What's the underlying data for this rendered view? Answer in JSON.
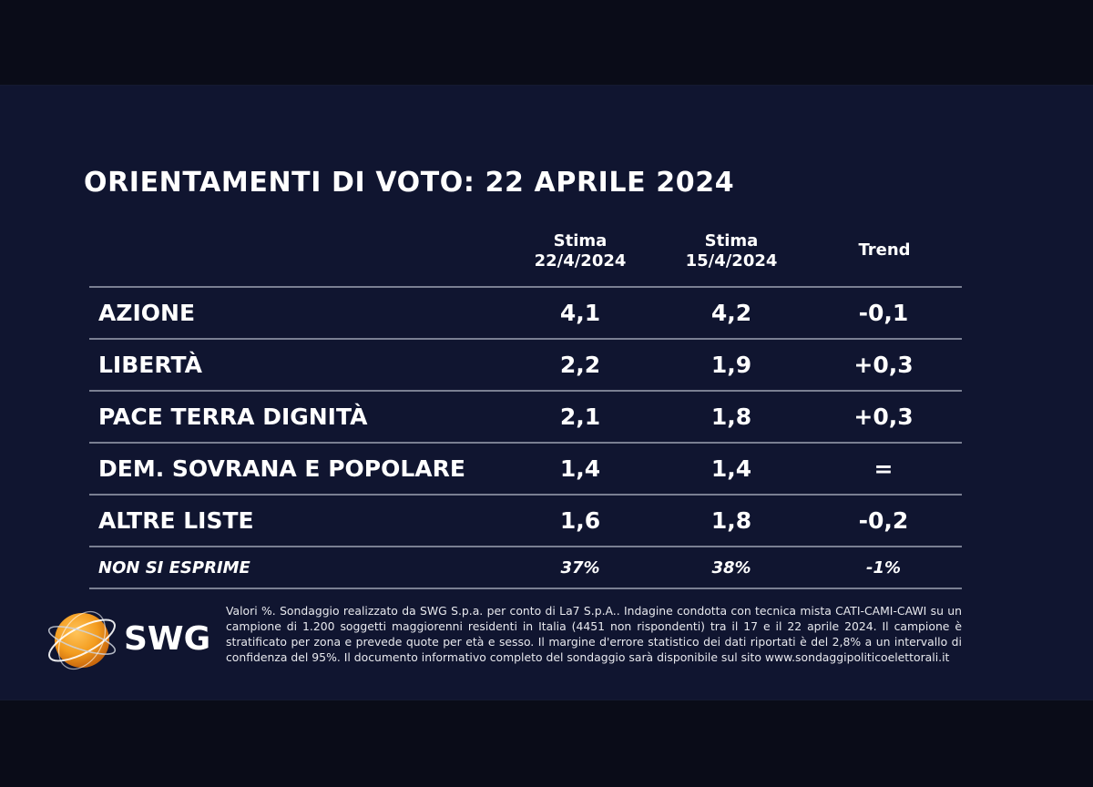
{
  "title": "ORIENTAMENTI DI VOTO: 22 APRILE 2024",
  "columns": {
    "est_current_line1": "Stima",
    "est_current_line2": "22/4/2024",
    "est_previous_line1": "Stima",
    "est_previous_line2": "15/4/2024",
    "trend": "Trend"
  },
  "rows": [
    {
      "name": "AZIONE",
      "current": "4,1",
      "previous": "4,2",
      "trend": "-0,1"
    },
    {
      "name": "LIBERTÀ",
      "current": "2,2",
      "previous": "1,9",
      "trend": "+0,3"
    },
    {
      "name": "PACE TERRA DIGNITÀ",
      "current": "2,1",
      "previous": "1,8",
      "trend": "+0,3"
    },
    {
      "name": "DEM. SOVRANA E POPOLARE",
      "current": "1,4",
      "previous": "1,4",
      "trend": "="
    },
    {
      "name": "ALTRE LISTE",
      "current": "1,6",
      "previous": "1,8",
      "trend": "-0,2"
    },
    {
      "name": "NON SI ESPRIME",
      "current": "37%",
      "previous": "38%",
      "trend": "-1%"
    }
  ],
  "logo": {
    "text": "SWG",
    "icon": "globe-icon"
  },
  "footnote": "Valori %. Sondaggio realizzato da SWG S.p.a. per conto di La7 S.p.A.. Indagine condotta con tecnica mista CATI-CAMI-CAWI su un campione di 1.200 soggetti maggiorenni residenti in Italia (4451 non rispondenti) tra il 17 e il 22 aprile 2024. Il campione è stratificato per zona e prevede quote per età e sesso. Il margine d'errore statistico dei dati riportati è del 2,8% a un intervallo di confidenza del 95%. Il documento informativo completo del sondaggio sarà disponibile sul sito www.sondaggipoliticoelettorali.it",
  "colors": {
    "background": "#101530",
    "band": "#0a0c18",
    "rule": "#7a7f92",
    "logo_orange": "#f39c1f"
  },
  "chart_data": {
    "type": "table",
    "title": "ORIENTAMENTI DI VOTO: 22 APRILE 2024",
    "columns": [
      "Stima 22/4/2024",
      "Stima 15/4/2024",
      "Trend"
    ],
    "categories": [
      "AZIONE",
      "LIBERTÀ",
      "PACE TERRA DIGNITÀ",
      "DEM. SOVRANA E POPOLARE",
      "ALTRE LISTE",
      "NON SI ESPRIME"
    ],
    "series": [
      {
        "name": "Stima 22/4/2024",
        "values": [
          4.1,
          2.2,
          2.1,
          1.4,
          1.6,
          37
        ]
      },
      {
        "name": "Stima 15/4/2024",
        "values": [
          4.2,
          1.9,
          1.8,
          1.4,
          1.8,
          38
        ]
      },
      {
        "name": "Trend",
        "values": [
          -0.1,
          0.3,
          0.3,
          0,
          -0.2,
          -1
        ]
      }
    ]
  }
}
